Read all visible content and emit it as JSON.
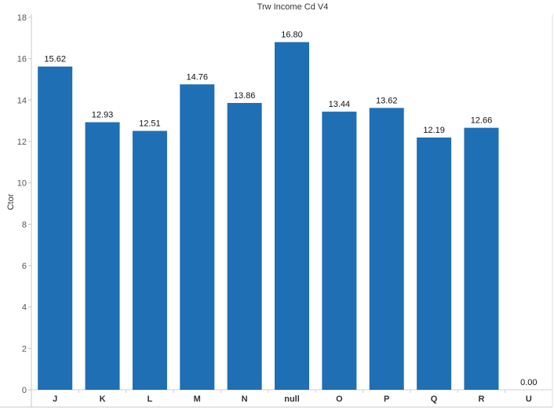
{
  "chart_data": {
    "type": "bar",
    "title": "Trw Income Cd V4",
    "xlabel": "",
    "ylabel": "Ctor",
    "categories": [
      "J",
      "K",
      "L",
      "M",
      "N",
      "null",
      "O",
      "P",
      "Q",
      "R",
      "U"
    ],
    "values": [
      15.62,
      12.93,
      12.51,
      14.76,
      13.86,
      16.8,
      13.44,
      13.62,
      12.19,
      12.66,
      0.0
    ],
    "data_labels": [
      "15.62",
      "12.93",
      "12.51",
      "14.76",
      "13.86",
      "16.80",
      "13.44",
      "13.62",
      "12.19",
      "12.66",
      "0.00"
    ],
    "ylim": [
      0,
      18
    ],
    "yticks": [
      "0",
      "2",
      "4",
      "6",
      "8",
      "10",
      "12",
      "14",
      "16",
      "18"
    ],
    "grid": false,
    "bar_color": "#1f6fb5",
    "legend": "none"
  }
}
